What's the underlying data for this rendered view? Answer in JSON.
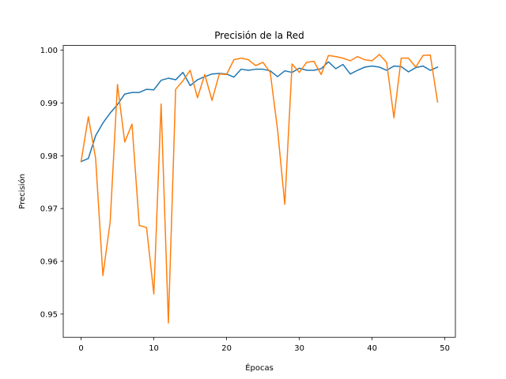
{
  "chart_data": {
    "type": "line",
    "title": "Precisión de la Red",
    "xlabel": "Épocas",
    "ylabel": "Precisión",
    "xlim": [
      -2.45,
      51.45
    ],
    "ylim": [
      0.9456,
      1.0009
    ],
    "xticks": [
      0,
      10,
      20,
      30,
      40,
      50
    ],
    "yticks": [
      0.95,
      0.96,
      0.97,
      0.98,
      0.99,
      1.0
    ],
    "ytick_labels": [
      "0.95",
      "0.96",
      "0.97",
      "0.98",
      "0.99",
      "1.00"
    ],
    "grid": false,
    "legend": null,
    "x": [
      0,
      1,
      2,
      3,
      4,
      5,
      6,
      7,
      8,
      9,
      10,
      11,
      12,
      13,
      14,
      15,
      16,
      17,
      18,
      19,
      20,
      21,
      22,
      23,
      24,
      25,
      26,
      27,
      28,
      29,
      30,
      31,
      32,
      33,
      34,
      35,
      36,
      37,
      38,
      39,
      40,
      41,
      42,
      43,
      44,
      45,
      46,
      47,
      48,
      49
    ],
    "series": [
      {
        "color": "#1f77b4",
        "values": [
          0.9789,
          0.9795,
          0.9838,
          0.9862,
          0.9881,
          0.9897,
          0.9917,
          0.992,
          0.992,
          0.9926,
          0.9925,
          0.9943,
          0.9947,
          0.9944,
          0.9958,
          0.9933,
          0.9944,
          0.995,
          0.9955,
          0.9956,
          0.9955,
          0.9949,
          0.9964,
          0.9962,
          0.9964,
          0.9964,
          0.9961,
          0.995,
          0.9961,
          0.9958,
          0.9966,
          0.9962,
          0.9962,
          0.9965,
          0.9978,
          0.9965,
          0.9973,
          0.9955,
          0.9962,
          0.9968,
          0.997,
          0.9968,
          0.9962,
          0.997,
          0.9969,
          0.9959,
          0.9967,
          0.997,
          0.9962,
          0.9968
        ]
      },
      {
        "color": "#ff7f0e",
        "values": [
          0.9789,
          0.9874,
          0.9795,
          0.9573,
          0.9675,
          0.9935,
          0.9826,
          0.986,
          0.9668,
          0.9664,
          0.9538,
          0.9898,
          0.9483,
          0.9926,
          0.9942,
          0.9962,
          0.991,
          0.9954,
          0.9905,
          0.9955,
          0.9954,
          0.9982,
          0.9985,
          0.9982,
          0.9971,
          0.9977,
          0.9958,
          0.985,
          0.9708,
          0.9974,
          0.9958,
          0.9977,
          0.9979,
          0.9954,
          0.999,
          0.9988,
          0.9985,
          0.998,
          0.9988,
          0.9982,
          0.998,
          0.9992,
          0.9977,
          0.9872,
          0.9985,
          0.9985,
          0.9968,
          0.999,
          0.9991,
          0.9902
        ]
      }
    ]
  }
}
